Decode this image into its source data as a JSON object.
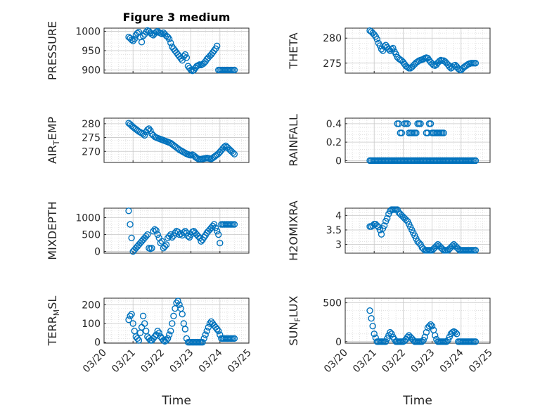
{
  "figure": {
    "title": "Figure 3 medium",
    "xlabel": "Time",
    "x_tick_labels": [
      "03/20",
      "03/21",
      "03/22",
      "03/23",
      "03/24",
      "03/25"
    ],
    "marker_color": "#0072BD",
    "grid_color": "#d9d9d9"
  },
  "chart_data": [
    {
      "type": "scatter",
      "ylabel": "PRESSURE",
      "ylim": [
        892,
        1008
      ],
      "yticks": [
        900,
        950,
        1000
      ],
      "x": [
        20.85,
        20.9,
        20.95,
        21.0,
        21.05,
        21.1,
        21.15,
        21.2,
        21.25,
        21.3,
        21.35,
        21.4,
        21.45,
        21.5,
        21.55,
        21.6,
        21.65,
        21.7,
        21.75,
        21.8,
        21.85,
        21.9,
        21.95,
        22.0,
        22.05,
        22.1,
        22.15,
        22.2,
        22.25,
        22.3,
        22.35,
        22.4,
        22.45,
        22.5,
        22.55,
        22.6,
        22.65,
        22.7,
        22.75,
        22.8,
        22.85,
        22.9,
        22.95,
        23.0,
        23.05,
        23.1,
        23.15,
        23.2,
        23.25,
        23.3,
        23.35,
        23.4,
        23.45,
        23.5,
        23.55,
        23.6,
        23.65,
        23.7,
        23.75,
        23.8,
        23.85,
        23.9,
        23.95,
        24.0,
        24.05,
        24.1,
        24.15,
        24.2,
        24.25,
        24.3,
        24.35,
        24.4,
        24.45,
        24.5
      ],
      "y": [
        985,
        982,
        978,
        975,
        980,
        990,
        995,
        998,
        985,
        972,
        988,
        992,
        998,
        1002,
        1000,
        996,
        992,
        990,
        994,
        998,
        1000,
        997,
        995,
        993,
        996,
        992,
        988,
        985,
        980,
        970,
        960,
        955,
        950,
        945,
        940,
        935,
        930,
        925,
        935,
        940,
        932,
        910,
        905,
        900,
        898,
        900,
        905,
        910,
        912,
        914,
        913,
        915,
        918,
        922,
        928,
        932,
        936,
        940,
        945,
        950,
        955,
        962,
        900,
        900,
        900,
        900,
        900,
        900,
        900,
        900,
        900,
        900,
        900,
        900
      ]
    },
    {
      "type": "scatter",
      "ylabel": "THETA",
      "ylim": [
        273,
        282
      ],
      "yticks": [
        275,
        280
      ],
      "x": [
        20.85,
        20.9,
        20.95,
        21.0,
        21.05,
        21.1,
        21.15,
        21.2,
        21.25,
        21.3,
        21.35,
        21.4,
        21.45,
        21.5,
        21.55,
        21.6,
        21.65,
        21.7,
        21.75,
        21.8,
        21.85,
        21.9,
        21.95,
        22.0,
        22.05,
        22.1,
        22.15,
        22.2,
        22.25,
        22.3,
        22.35,
        22.4,
        22.45,
        22.5,
        22.55,
        22.6,
        22.65,
        22.7,
        22.75,
        22.8,
        22.85,
        22.9,
        22.95,
        23.0,
        23.05,
        23.1,
        23.15,
        23.2,
        23.25,
        23.3,
        23.35,
        23.4,
        23.45,
        23.5,
        23.55,
        23.6,
        23.65,
        23.7,
        23.75,
        23.8,
        23.85,
        23.9,
        23.95,
        24.0,
        24.05,
        24.1,
        24.15,
        24.2,
        24.25,
        24.3,
        24.35,
        24.4,
        24.45,
        24.5
      ],
      "y": [
        281.5,
        281.3,
        281.0,
        280.7,
        280.3,
        279.8,
        279.0,
        278.5,
        277.8,
        277.5,
        278.3,
        278.6,
        278.2,
        277.8,
        277.5,
        277.8,
        278.0,
        277.3,
        276.8,
        276.2,
        275.9,
        275.7,
        275.5,
        275.2,
        274.8,
        274.4,
        274.2,
        274.0,
        274.0,
        274.2,
        274.5,
        274.8,
        275.1,
        275.3,
        275.5,
        275.6,
        275.7,
        275.8,
        276.0,
        276.1,
        276.0,
        275.6,
        275.2,
        274.9,
        274.6,
        274.5,
        274.7,
        275.1,
        275.4,
        275.6,
        275.5,
        275.5,
        275.3,
        275.0,
        274.7,
        274.3,
        274.0,
        274.2,
        274.5,
        274.6,
        274.3,
        273.9,
        273.7,
        273.6,
        273.9,
        274.2,
        274.4,
        274.6,
        274.8,
        274.9,
        275.0,
        275.0,
        275.0,
        275.0
      ]
    },
    {
      "type": "scatter",
      "ylabel": "AIR_TEMP",
      "ylim": [
        266,
        282
      ],
      "yticks": [
        270,
        275,
        280
      ],
      "x": [
        20.85,
        20.9,
        20.95,
        21.0,
        21.05,
        21.1,
        21.15,
        21.2,
        21.25,
        21.3,
        21.35,
        21.4,
        21.45,
        21.5,
        21.55,
        21.6,
        21.65,
        21.7,
        21.75,
        21.8,
        21.85,
        21.9,
        21.95,
        22.0,
        22.05,
        22.1,
        22.15,
        22.2,
        22.25,
        22.3,
        22.35,
        22.4,
        22.45,
        22.5,
        22.55,
        22.6,
        22.65,
        22.7,
        22.75,
        22.8,
        22.85,
        22.9,
        22.95,
        23.0,
        23.05,
        23.1,
        23.15,
        23.2,
        23.25,
        23.3,
        23.35,
        23.4,
        23.45,
        23.5,
        23.55,
        23.6,
        23.65,
        23.7,
        23.75,
        23.8,
        23.85,
        23.9,
        23.95,
        24.0,
        24.05,
        24.1,
        24.15,
        24.2,
        24.25,
        24.3,
        24.35,
        24.4,
        24.45,
        24.5
      ],
      "y": [
        280.2,
        279.8,
        279.3,
        278.8,
        278.4,
        278.0,
        277.6,
        277.2,
        276.9,
        276.6,
        276.2,
        275.8,
        277.0,
        277.8,
        278.2,
        277.5,
        276.3,
        275.8,
        275.3,
        275.0,
        274.8,
        274.6,
        274.4,
        274.2,
        274.0,
        273.8,
        273.6,
        273.4,
        273.2,
        273.0,
        272.6,
        272.2,
        271.8,
        271.4,
        271.0,
        270.6,
        270.3,
        270.0,
        269.7,
        269.4,
        269.1,
        268.9,
        268.7,
        268.6,
        268.8,
        268.5,
        268.0,
        267.6,
        267.3,
        267.2,
        267.2,
        267.3,
        267.4,
        267.5,
        267.6,
        267.5,
        267.4,
        267.3,
        267.6,
        268.0,
        268.4,
        268.8,
        269.2,
        269.8,
        270.4,
        271.0,
        271.6,
        272.0,
        271.5,
        271.0,
        270.5,
        270.0,
        269.5,
        269.0
      ]
    },
    {
      "type": "scatter",
      "ylabel": "RAINFALL",
      "ylim": [
        -0.02,
        0.46
      ],
      "yticks": [
        0,
        0.2,
        0.4
      ],
      "x": [
        20.85,
        20.9,
        20.95,
        21.0,
        21.05,
        21.1,
        21.15,
        21.2,
        21.25,
        21.3,
        21.35,
        21.4,
        21.45,
        21.5,
        21.55,
        21.6,
        21.65,
        21.7,
        21.75,
        21.8,
        21.85,
        21.9,
        21.95,
        22.0,
        22.05,
        22.1,
        22.15,
        22.2,
        22.25,
        22.3,
        22.35,
        22.4,
        22.45,
        22.5,
        22.55,
        22.6,
        22.65,
        22.7,
        22.75,
        22.8,
        22.85,
        22.9,
        22.95,
        23.0,
        23.05,
        23.1,
        23.15,
        23.2,
        23.25,
        23.3,
        23.35,
        23.4,
        23.45,
        23.5,
        23.55,
        23.6,
        23.65,
        23.7,
        23.75,
        23.8,
        23.85,
        23.9,
        23.95,
        24.0,
        24.05,
        24.1,
        24.15,
        24.2,
        24.25,
        24.3,
        24.35,
        24.4,
        24.45,
        24.5,
        21.8,
        21.85,
        21.9,
        21.95,
        22.05,
        22.1,
        22.15,
        22.2,
        22.25,
        22.3,
        22.35,
        22.4,
        22.45,
        22.5,
        22.55,
        22.6,
        22.8,
        22.85,
        22.9,
        22.95,
        23.0,
        23.05,
        23.1,
        23.15,
        23.2,
        23.25,
        23.3,
        23.35,
        23.4
      ],
      "y": [
        0,
        0,
        0,
        0,
        0,
        0,
        0,
        0,
        0,
        0,
        0,
        0,
        0,
        0,
        0,
        0,
        0,
        0,
        0,
        0,
        0,
        0,
        0,
        0,
        0,
        0,
        0,
        0,
        0,
        0,
        0,
        0,
        0,
        0,
        0,
        0,
        0,
        0,
        0,
        0,
        0,
        0,
        0,
        0,
        0,
        0,
        0,
        0,
        0,
        0,
        0,
        0,
        0,
        0,
        0,
        0,
        0,
        0,
        0,
        0,
        0,
        0,
        0,
        0,
        0,
        0,
        0,
        0,
        0,
        0,
        0,
        0,
        0,
        0,
        0.4,
        0.4,
        0.3,
        0.3,
        0.4,
        0.4,
        0.4,
        0.3,
        0.3,
        0.3,
        0.3,
        0.3,
        0.3,
        0.4,
        0.4,
        0.4,
        0.3,
        0.3,
        0.4,
        0.4,
        0.3,
        0.3,
        0.3,
        0.3,
        0.3,
        0.3,
        0.3,
        0.3,
        0.3
      ]
    },
    {
      "type": "scatter",
      "ylabel": "MIXDEPTH",
      "ylim": [
        -50,
        1280
      ],
      "yticks": [
        0,
        500,
        1000
      ],
      "x": [
        20.85,
        20.9,
        20.95,
        21.0,
        21.05,
        21.1,
        21.15,
        21.2,
        21.25,
        21.3,
        21.35,
        21.4,
        21.45,
        21.5,
        21.55,
        21.6,
        21.65,
        21.7,
        21.75,
        21.8,
        21.85,
        21.9,
        21.95,
        22.0,
        22.05,
        22.1,
        22.15,
        22.2,
        22.25,
        22.3,
        22.35,
        22.4,
        22.45,
        22.5,
        22.55,
        22.6,
        22.65,
        22.7,
        22.75,
        22.8,
        22.85,
        22.9,
        22.95,
        23.0,
        23.05,
        23.1,
        23.15,
        23.2,
        23.25,
        23.3,
        23.35,
        23.4,
        23.45,
        23.5,
        23.55,
        23.6,
        23.65,
        23.7,
        23.75,
        23.8,
        23.85,
        23.9,
        23.95,
        24.0,
        24.05,
        24.1,
        24.15,
        24.2,
        24.25,
        24.3,
        24.35,
        24.4,
        24.45,
        24.5
      ],
      "y": [
        1200,
        800,
        400,
        0,
        50,
        100,
        150,
        200,
        250,
        300,
        350,
        400,
        450,
        500,
        100,
        80,
        100,
        600,
        650,
        620,
        500,
        400,
        250,
        300,
        100,
        150,
        200,
        400,
        450,
        500,
        420,
        470,
        550,
        600,
        580,
        500,
        520,
        480,
        560,
        600,
        550,
        450,
        420,
        500,
        580,
        600,
        550,
        500,
        450,
        400,
        300,
        350,
        420,
        480,
        550,
        600,
        650,
        700,
        750,
        800,
        700,
        600,
        500,
        250,
        800,
        800,
        800,
        800,
        800,
        800,
        800,
        800,
        800,
        800
      ]
    },
    {
      "type": "scatter",
      "ylabel": "H2OMIXRA",
      "ylim": [
        2.7,
        4.25
      ],
      "yticks": [
        3,
        3.5,
        4
      ],
      "x": [
        20.85,
        20.9,
        20.95,
        21.0,
        21.05,
        21.1,
        21.15,
        21.2,
        21.25,
        21.3,
        21.35,
        21.4,
        21.45,
        21.5,
        21.55,
        21.6,
        21.65,
        21.7,
        21.75,
        21.8,
        21.85,
        21.9,
        21.95,
        22.0,
        22.05,
        22.1,
        22.15,
        22.2,
        22.25,
        22.3,
        22.35,
        22.4,
        22.45,
        22.5,
        22.55,
        22.6,
        22.65,
        22.7,
        22.75,
        22.8,
        22.85,
        22.9,
        22.95,
        23.0,
        23.05,
        23.1,
        23.15,
        23.2,
        23.25,
        23.3,
        23.35,
        23.4,
        23.45,
        23.5,
        23.55,
        23.6,
        23.65,
        23.7,
        23.75,
        23.8,
        23.85,
        23.9,
        23.95,
        24.0,
        24.05,
        24.1,
        24.15,
        24.2,
        24.25,
        24.3,
        24.35,
        24.4,
        24.45,
        24.5
      ],
      "y": [
        3.62,
        3.62,
        3.65,
        3.7,
        3.7,
        3.65,
        3.6,
        3.5,
        3.35,
        3.55,
        3.65,
        3.8,
        3.9,
        4.05,
        4.15,
        4.2,
        4.2,
        4.2,
        4.2,
        4.2,
        4.1,
        4.05,
        4.0,
        3.95,
        3.9,
        3.85,
        3.8,
        3.7,
        3.6,
        3.5,
        3.4,
        3.3,
        3.2,
        3.1,
        3.05,
        3.0,
        2.9,
        2.85,
        2.8,
        2.8,
        2.8,
        2.8,
        2.8,
        2.8,
        2.85,
        2.9,
        2.95,
        3.0,
        2.95,
        2.9,
        2.85,
        2.8,
        2.8,
        2.8,
        2.8,
        2.85,
        2.9,
        2.95,
        3.0,
        2.95,
        2.9,
        2.85,
        2.8,
        2.8,
        2.8,
        2.8,
        2.8,
        2.8,
        2.8,
        2.8,
        2.8,
        2.8,
        2.8,
        2.8
      ]
    },
    {
      "type": "scatter",
      "ylabel": "TERR_MSL",
      "ylim": [
        -5,
        235
      ],
      "yticks": [
        0,
        100,
        200
      ],
      "x": [
        20.85,
        20.9,
        20.95,
        21.0,
        21.05,
        21.1,
        21.15,
        21.2,
        21.25,
        21.3,
        21.35,
        21.4,
        21.45,
        21.5,
        21.55,
        21.6,
        21.65,
        21.7,
        21.75,
        21.8,
        21.85,
        21.9,
        21.95,
        22.0,
        22.05,
        22.1,
        22.15,
        22.2,
        22.25,
        22.3,
        22.35,
        22.4,
        22.45,
        22.5,
        22.55,
        22.6,
        22.65,
        22.7,
        22.75,
        22.8,
        22.85,
        22.9,
        22.95,
        23.0,
        23.05,
        23.1,
        23.15,
        23.2,
        23.25,
        23.3,
        23.35,
        23.4,
        23.45,
        23.5,
        23.55,
        23.6,
        23.65,
        23.7,
        23.75,
        23.8,
        23.85,
        23.9,
        23.95,
        24.0,
        24.05,
        24.1,
        24.15,
        24.2,
        24.25,
        24.3,
        24.35,
        24.4,
        24.45,
        24.5
      ],
      "y": [
        120,
        140,
        150,
        100,
        60,
        30,
        20,
        10,
        50,
        80,
        140,
        100,
        60,
        30,
        20,
        10,
        10,
        20,
        30,
        40,
        60,
        50,
        30,
        20,
        10,
        5,
        10,
        20,
        40,
        60,
        100,
        140,
        180,
        210,
        220,
        200,
        180,
        150,
        100,
        70,
        20,
        0,
        0,
        0,
        0,
        0,
        0,
        0,
        0,
        0,
        0,
        0,
        20,
        40,
        60,
        80,
        100,
        110,
        100,
        90,
        80,
        70,
        60,
        40,
        20,
        20,
        20,
        20,
        20,
        20,
        20,
        20,
        20,
        20
      ]
    },
    {
      "type": "scatter",
      "ylabel": "SUN_FLUX",
      "ylim": [
        -20,
        560
      ],
      "yticks": [
        0,
        500
      ],
      "x": [
        20.85,
        20.9,
        20.95,
        21.0,
        21.05,
        21.1,
        21.15,
        21.2,
        21.25,
        21.3,
        21.35,
        21.4,
        21.45,
        21.5,
        21.55,
        21.6,
        21.65,
        21.7,
        21.75,
        21.8,
        21.85,
        21.9,
        21.95,
        22.0,
        22.05,
        22.1,
        22.15,
        22.2,
        22.25,
        22.3,
        22.35,
        22.4,
        22.45,
        22.5,
        22.55,
        22.6,
        22.65,
        22.7,
        22.75,
        22.8,
        22.85,
        22.9,
        22.95,
        23.0,
        23.05,
        23.1,
        23.15,
        23.2,
        23.25,
        23.3,
        23.35,
        23.4,
        23.45,
        23.5,
        23.55,
        23.6,
        23.65,
        23.7,
        23.75,
        23.8,
        23.85,
        23.9,
        23.95,
        24.0,
        24.05,
        24.1,
        24.15,
        24.2,
        24.25,
        24.3,
        24.35,
        24.4,
        24.45,
        24.5
      ],
      "y": [
        400,
        300,
        200,
        100,
        50,
        0,
        0,
        0,
        0,
        0,
        0,
        0,
        40,
        80,
        120,
        100,
        60,
        30,
        0,
        0,
        0,
        0,
        0,
        0,
        10,
        30,
        60,
        80,
        60,
        40,
        20,
        0,
        0,
        0,
        0,
        0,
        0,
        20,
        60,
        120,
        180,
        200,
        220,
        200,
        150,
        80,
        30,
        0,
        0,
        0,
        0,
        0,
        0,
        0,
        20,
        60,
        100,
        120,
        130,
        120,
        100,
        0,
        0,
        0,
        0,
        0,
        0,
        0,
        0,
        0,
        0,
        0,
        0,
        0
      ]
    }
  ]
}
